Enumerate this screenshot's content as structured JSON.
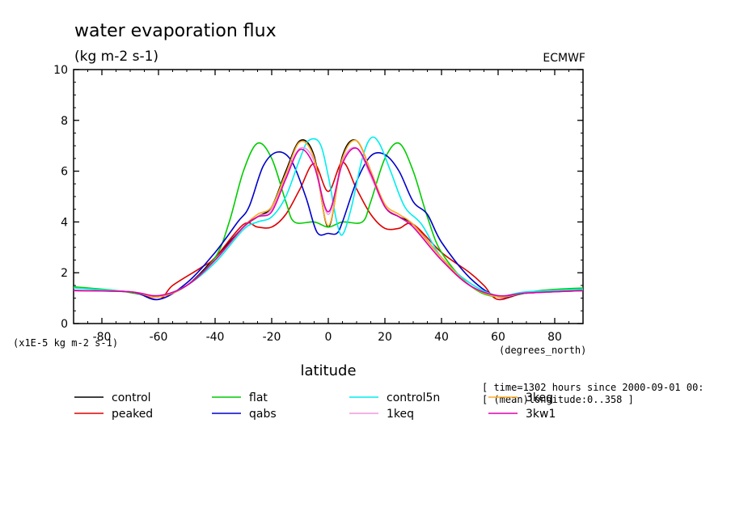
{
  "chart_data": {
    "type": "line",
    "title": "water evaporation flux",
    "units": "(kg m-2 s-1)",
    "source": "ECMWF",
    "xlabel": "latitude",
    "x_units": "(degrees_north)",
    "y_scale_label": "(x1E-5 kg m-2 s-1)",
    "xlim": [
      -90,
      90
    ],
    "ylim": [
      0,
      10
    ],
    "x_ticks": [
      -80,
      -60,
      -40,
      -20,
      0,
      20,
      40,
      60,
      80
    ],
    "y_ticks": [
      0,
      2,
      4,
      6,
      8,
      10
    ],
    "info_lines": [
      "[ time=1302 hours since 2000-09-01 00:",
      "[ (mean)longitude:0..358 ]"
    ],
    "legend_placement": "bottom",
    "series": [
      {
        "name": "control",
        "color": "#000000",
        "points": [
          [
            -90,
            1.3
          ],
          [
            -70,
            1.25
          ],
          [
            -60,
            1.05
          ],
          [
            -50,
            1.5
          ],
          [
            -40,
            2.6
          ],
          [
            -30,
            3.8
          ],
          [
            -25,
            4.2
          ],
          [
            -20,
            4.6
          ],
          [
            -15,
            6.0
          ],
          [
            -10,
            7.2
          ],
          [
            -5,
            6.6
          ],
          [
            0,
            3.8
          ],
          [
            5,
            6.6
          ],
          [
            10,
            7.2
          ],
          [
            15,
            6.0
          ],
          [
            20,
            4.6
          ],
          [
            25,
            4.2
          ],
          [
            30,
            3.9
          ],
          [
            40,
            2.6
          ],
          [
            50,
            1.5
          ],
          [
            60,
            1.05
          ],
          [
            70,
            1.2
          ],
          [
            90,
            1.3
          ]
        ]
      },
      {
        "name": "peaked",
        "color": "#dd0000",
        "points": [
          [
            -90,
            1.3
          ],
          [
            -70,
            1.25
          ],
          [
            -60,
            0.95
          ],
          [
            -55,
            1.5
          ],
          [
            -45,
            2.2
          ],
          [
            -40,
            2.6
          ],
          [
            -30,
            3.9
          ],
          [
            -25,
            3.8
          ],
          [
            -20,
            3.8
          ],
          [
            -15,
            4.3
          ],
          [
            -10,
            5.3
          ],
          [
            -5,
            6.3
          ],
          [
            0,
            5.2
          ],
          [
            5,
            6.35
          ],
          [
            10,
            5.3
          ],
          [
            15,
            4.3
          ],
          [
            20,
            3.75
          ],
          [
            25,
            3.75
          ],
          [
            30,
            3.9
          ],
          [
            40,
            2.8
          ],
          [
            50,
            2.0
          ],
          [
            55,
            1.5
          ],
          [
            60,
            0.95
          ],
          [
            70,
            1.2
          ],
          [
            90,
            1.3
          ]
        ]
      },
      {
        "name": "flat",
        "color": "#00cc00",
        "points": [
          [
            -90,
            1.45
          ],
          [
            -75,
            1.3
          ],
          [
            -60,
            1.1
          ],
          [
            -50,
            1.5
          ],
          [
            -40,
            2.6
          ],
          [
            -35,
            4.0
          ],
          [
            -30,
            6.0
          ],
          [
            -25,
            7.1
          ],
          [
            -20,
            6.5
          ],
          [
            -15,
            4.8
          ],
          [
            -12,
            4.0
          ],
          [
            -5,
            4.0
          ],
          [
            0,
            3.8
          ],
          [
            5,
            4.0
          ],
          [
            12,
            4.0
          ],
          [
            15,
            4.8
          ],
          [
            20,
            6.5
          ],
          [
            25,
            7.1
          ],
          [
            30,
            6.0
          ],
          [
            35,
            4.2
          ],
          [
            40,
            2.8
          ],
          [
            50,
            1.5
          ],
          [
            60,
            1.05
          ],
          [
            75,
            1.3
          ],
          [
            90,
            1.4
          ]
        ]
      },
      {
        "name": "qabs",
        "color": "#0000cc",
        "points": [
          [
            -90,
            1.3
          ],
          [
            -70,
            1.25
          ],
          [
            -60,
            0.95
          ],
          [
            -50,
            1.6
          ],
          [
            -40,
            2.8
          ],
          [
            -32,
            4.0
          ],
          [
            -28,
            4.6
          ],
          [
            -23,
            6.2
          ],
          [
            -18,
            6.75
          ],
          [
            -13,
            6.4
          ],
          [
            -8,
            5.0
          ],
          [
            -4,
            3.6
          ],
          [
            0,
            3.55
          ],
          [
            3,
            3.55
          ],
          [
            5,
            4.0
          ],
          [
            10,
            5.6
          ],
          [
            15,
            6.6
          ],
          [
            20,
            6.65
          ],
          [
            25,
            6.0
          ],
          [
            30,
            4.8
          ],
          [
            35,
            4.3
          ],
          [
            40,
            3.2
          ],
          [
            50,
            1.8
          ],
          [
            60,
            1.05
          ],
          [
            70,
            1.2
          ],
          [
            90,
            1.3
          ]
        ]
      },
      {
        "name": "control5n",
        "color": "#00eeee",
        "points": [
          [
            -90,
            1.4
          ],
          [
            -70,
            1.25
          ],
          [
            -60,
            1.1
          ],
          [
            -50,
            1.5
          ],
          [
            -40,
            2.4
          ],
          [
            -30,
            3.7
          ],
          [
            -25,
            4.0
          ],
          [
            -20,
            4.2
          ],
          [
            -15,
            5.0
          ],
          [
            -10,
            6.5
          ],
          [
            -7,
            7.2
          ],
          [
            -3,
            7.1
          ],
          [
            0,
            5.8
          ],
          [
            3,
            4.0
          ],
          [
            5,
            3.5
          ],
          [
            8,
            4.5
          ],
          [
            12,
            6.5
          ],
          [
            15,
            7.3
          ],
          [
            18,
            7.1
          ],
          [
            22,
            6.0
          ],
          [
            27,
            4.6
          ],
          [
            33,
            3.9
          ],
          [
            40,
            2.6
          ],
          [
            50,
            1.6
          ],
          [
            60,
            1.1
          ],
          [
            70,
            1.25
          ],
          [
            90,
            1.35
          ]
        ]
      },
      {
        "name": "1keq",
        "color": "#ee99dd",
        "points": [
          [
            -90,
            1.3
          ],
          [
            -70,
            1.25
          ],
          [
            -60,
            1.1
          ],
          [
            -50,
            1.5
          ],
          [
            -40,
            2.5
          ],
          [
            -30,
            3.8
          ],
          [
            -25,
            4.2
          ],
          [
            -20,
            4.5
          ],
          [
            -15,
            5.8
          ],
          [
            -10,
            6.9
          ],
          [
            -5,
            6.4
          ],
          [
            0,
            4.3
          ],
          [
            5,
            6.4
          ],
          [
            10,
            6.9
          ],
          [
            15,
            5.8
          ],
          [
            20,
            4.6
          ],
          [
            25,
            4.2
          ],
          [
            30,
            3.8
          ],
          [
            40,
            2.5
          ],
          [
            50,
            1.5
          ],
          [
            60,
            1.1
          ],
          [
            70,
            1.2
          ],
          [
            90,
            1.3
          ]
        ]
      },
      {
        "name": "3keq",
        "color": "#ffaa22",
        "points": [
          [
            -90,
            1.3
          ],
          [
            -70,
            1.25
          ],
          [
            -60,
            1.05
          ],
          [
            -50,
            1.5
          ],
          [
            -40,
            2.5
          ],
          [
            -30,
            3.8
          ],
          [
            -25,
            4.3
          ],
          [
            -20,
            4.6
          ],
          [
            -15,
            5.9
          ],
          [
            -10,
            7.15
          ],
          [
            -5,
            6.5
          ],
          [
            0,
            3.85
          ],
          [
            5,
            6.5
          ],
          [
            10,
            7.2
          ],
          [
            15,
            6.0
          ],
          [
            20,
            4.7
          ],
          [
            25,
            4.3
          ],
          [
            30,
            3.9
          ],
          [
            40,
            2.6
          ],
          [
            50,
            1.5
          ],
          [
            60,
            1.05
          ],
          [
            70,
            1.2
          ],
          [
            90,
            1.3
          ]
        ]
      },
      {
        "name": "3kw1",
        "color": "#dd00aa",
        "points": [
          [
            -90,
            1.3
          ],
          [
            -70,
            1.25
          ],
          [
            -60,
            1.1
          ],
          [
            -50,
            1.5
          ],
          [
            -40,
            2.5
          ],
          [
            -30,
            3.8
          ],
          [
            -25,
            4.2
          ],
          [
            -20,
            4.4
          ],
          [
            -15,
            5.7
          ],
          [
            -10,
            6.85
          ],
          [
            -5,
            6.2
          ],
          [
            0,
            4.4
          ],
          [
            5,
            6.3
          ],
          [
            10,
            6.9
          ],
          [
            15,
            5.9
          ],
          [
            20,
            4.6
          ],
          [
            25,
            4.2
          ],
          [
            30,
            3.8
          ],
          [
            40,
            2.5
          ],
          [
            50,
            1.5
          ],
          [
            60,
            1.1
          ],
          [
            70,
            1.2
          ],
          [
            90,
            1.3
          ]
        ]
      }
    ]
  }
}
